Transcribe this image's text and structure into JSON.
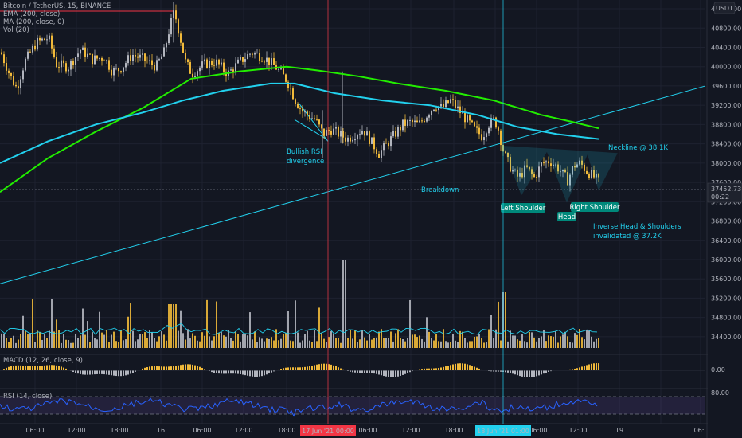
{
  "chart_data": {
    "type": "candlestick",
    "symbol": "Bitcoin / TetherUS, 15, BINANCE",
    "currency_label": "USDT",
    "indicators": [
      "EMA (200, close)",
      "MA (200, close, 0)",
      "Vol (20)"
    ],
    "macd_label": "MACD (12, 26, close, 9)",
    "rsi_label": "RSI (14, close)",
    "price_ticks": [
      "41200.00",
      "40800.00",
      "40400.00",
      "40000.00",
      "39600.00",
      "39200.00",
      "38800.00",
      "38400.00",
      "38000.00",
      "37600.00",
      "37200.00",
      "36800.00",
      "36400.00",
      "36000.00",
      "35600.00",
      "35200.00",
      "34800.00",
      "34400.00"
    ],
    "price_ylim": [
      34200,
      41250
    ],
    "current_price": "37452.73",
    "countdown": "00:22",
    "macd_tick": "0.00",
    "rsi_tick": "80.00",
    "time_ticks": [
      "06:00",
      "12:00",
      "18:00",
      "16",
      "06:00",
      "12:00",
      "18:00",
      "06:00",
      "12:00",
      "18:00",
      "06:00",
      "12:00",
      "19",
      "06:"
    ],
    "time_markers": [
      {
        "label": "17 Jun '21   00:00",
        "color": "#f23645"
      },
      {
        "label": "18 Jun '21   01:00",
        "color": "#22d1ee"
      }
    ],
    "price_path": [
      [
        0,
        40300
      ],
      [
        12,
        39800
      ],
      [
        20,
        39550
      ],
      [
        30,
        40100
      ],
      [
        45,
        40500
      ],
      [
        60,
        40600
      ],
      [
        70,
        40050
      ],
      [
        85,
        40000
      ],
      [
        100,
        40350
      ],
      [
        115,
        40150
      ],
      [
        130,
        40200
      ],
      [
        140,
        39900
      ],
      [
        150,
        39950
      ],
      [
        165,
        40250
      ],
      [
        180,
        40150
      ],
      [
        195,
        40000
      ],
      [
        205,
        40300
      ],
      [
        212,
        40800
      ],
      [
        218,
        41150
      ],
      [
        224,
        40700
      ],
      [
        232,
        40100
      ],
      [
        240,
        39850
      ],
      [
        255,
        40050
      ],
      [
        270,
        40100
      ],
      [
        285,
        39850
      ],
      [
        300,
        40100
      ],
      [
        315,
        40300
      ],
      [
        330,
        40200
      ],
      [
        345,
        40000
      ],
      [
        360,
        39700
      ],
      [
        370,
        39300
      ],
      [
        380,
        39050
      ],
      [
        395,
        38900
      ],
      [
        405,
        38600
      ],
      [
        415,
        38700
      ],
      [
        425,
        38600
      ],
      [
        435,
        38500
      ],
      [
        445,
        38600
      ],
      [
        455,
        38700
      ],
      [
        465,
        38450
      ],
      [
        475,
        38200
      ],
      [
        485,
        38400
      ],
      [
        495,
        38600
      ],
      [
        505,
        38800
      ],
      [
        515,
        38850
      ],
      [
        525,
        38800
      ],
      [
        535,
        39000
      ],
      [
        545,
        39200
      ],
      [
        555,
        39150
      ],
      [
        565,
        39300
      ],
      [
        575,
        39100
      ],
      [
        585,
        38900
      ],
      [
        595,
        38700
      ],
      [
        605,
        38550
      ],
      [
        612,
        38800
      ],
      [
        620,
        38900
      ],
      [
        625,
        38700
      ],
      [
        632,
        38200
      ],
      [
        642,
        37850
      ],
      [
        650,
        37700
      ],
      [
        660,
        37900
      ],
      [
        670,
        37700
      ],
      [
        680,
        38000
      ],
      [
        690,
        38050
      ],
      [
        700,
        37900
      ],
      [
        707,
        37750
      ],
      [
        712,
        37650
      ],
      [
        720,
        37950
      ],
      [
        728,
        38000
      ],
      [
        735,
        37850
      ],
      [
        742,
        37750
      ],
      [
        750,
        37650
      ],
      [
        753,
        37550
      ]
    ],
    "ema200_path": [
      [
        0,
        37400
      ],
      [
        60,
        38100
      ],
      [
        120,
        38650
      ],
      [
        180,
        39150
      ],
      [
        240,
        39750
      ],
      [
        300,
        39900
      ],
      [
        360,
        40000
      ],
      [
        400,
        39920
      ],
      [
        450,
        39800
      ],
      [
        500,
        39650
      ],
      [
        560,
        39500
      ],
      [
        620,
        39300
      ],
      [
        680,
        39000
      ],
      [
        720,
        38850
      ],
      [
        752,
        38720
      ]
    ],
    "ma200_path": [
      [
        0,
        38000
      ],
      [
        60,
        38450
      ],
      [
        120,
        38800
      ],
      [
        180,
        39050
      ],
      [
        230,
        39300
      ],
      [
        280,
        39500
      ],
      [
        340,
        39650
      ],
      [
        370,
        39650
      ],
      [
        420,
        39450
      ],
      [
        480,
        39300
      ],
      [
        540,
        39200
      ],
      [
        600,
        39000
      ],
      [
        650,
        38750
      ],
      [
        700,
        38600
      ],
      [
        752,
        38500
      ]
    ],
    "annotations": {
      "bullish_rsi": [
        "Bullish RSI",
        "divergence"
      ],
      "breakdown": "Breakdown",
      "neckline": "Neckline @ 38.1K",
      "left_shoulder": "Left Shoulder",
      "head": "Head",
      "right_shoulder": "Right Shoulder",
      "invalidated": [
        "Inverse Head & Shoulders",
        "invalidated @ 37.2K"
      ]
    },
    "colors": {
      "background": "#131722",
      "candle_up": "#b2b5be",
      "candle_down": "#f0b93a",
      "ema": "#22ee00",
      "ma": "#22d1ee",
      "trendline": "#22d1ee",
      "rsi_line": "#2962ff",
      "rsi_band": "#7e57c2",
      "annotation_text": "#22d1ee",
      "label_bg": "#00897b"
    }
  }
}
